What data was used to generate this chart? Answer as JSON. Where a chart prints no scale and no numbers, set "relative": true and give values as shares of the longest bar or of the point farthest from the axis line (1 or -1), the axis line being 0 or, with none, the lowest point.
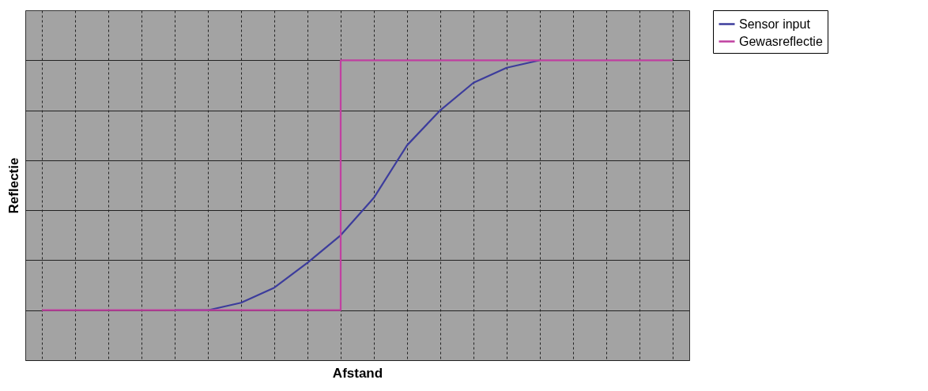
{
  "chart_data": {
    "type": "line",
    "xlabel": "Afstand",
    "ylabel": "Reflectie",
    "relative": true,
    "grid": true,
    "legend": "right",
    "categories": [
      null,
      null,
      null,
      null,
      null,
      null,
      null,
      null,
      null,
      null,
      null,
      null,
      null,
      null,
      null,
      null,
      null,
      null,
      null,
      null
    ],
    "series": [
      {
        "name": "Sensor input",
        "color": "#3c3c9c",
        "values": [
          null,
          null,
          null,
          null,
          0,
          0,
          0.03,
          0.09,
          0.19,
          0.3,
          0.45,
          0.66,
          0.8,
          0.91,
          0.97,
          1,
          null,
          null,
          null,
          null
        ]
      },
      {
        "name": "Gewasreflectie",
        "color": "#c040a0",
        "type": "step",
        "values": [
          0,
          0,
          0,
          0,
          0,
          0,
          0,
          0,
          0,
          0,
          1,
          1,
          1,
          1,
          1,
          1,
          1,
          1,
          1,
          1
        ]
      }
    ]
  }
}
